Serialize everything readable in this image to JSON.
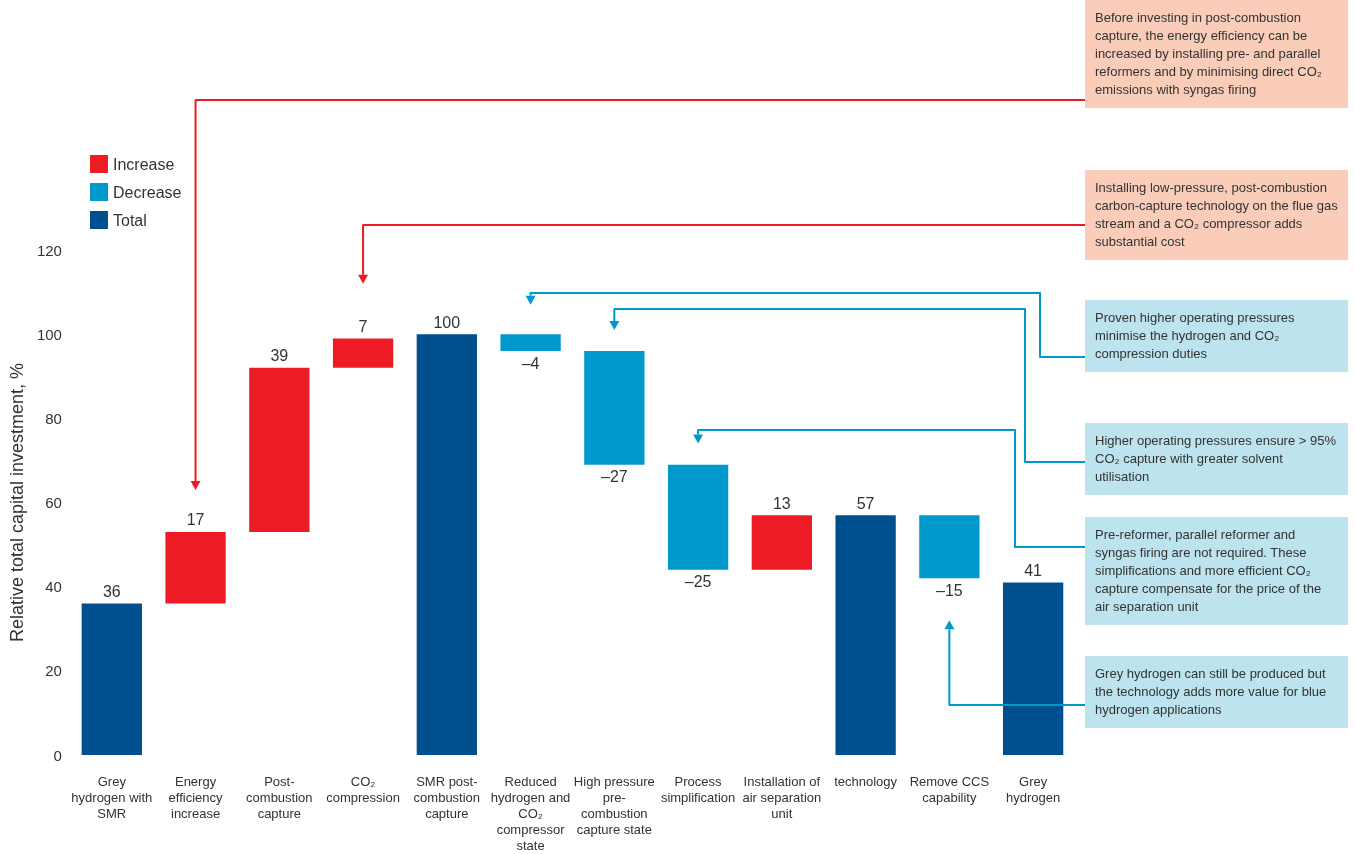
{
  "chart_data": {
    "type": "bar",
    "ylabel": "Relative total capital investment, %",
    "categories": [
      "Grey hydrogen with SMR",
      "Energy efficiency increase",
      "Post-combustion capture",
      "CO₂ compression",
      "SMR post-combustion capture",
      "Reduced hydrogen and CO₂ compressor state",
      "High pressure pre-combustion capture state",
      "Process simplification",
      "Installation of air separation unit",
      "technology",
      "Remove CCS capability",
      "Grey hydrogen"
    ],
    "series": [
      {
        "name": "Increase",
        "color": "#ed1c24",
        "base": [
          null,
          36,
          53,
          92,
          null,
          null,
          null,
          null,
          44,
          null,
          null,
          null
        ],
        "values": [
          null,
          17,
          39,
          7,
          null,
          null,
          null,
          null,
          13,
          null,
          null,
          null
        ],
        "value_labels": [
          null,
          "17",
          "39",
          "7",
          null,
          null,
          null,
          null,
          "13",
          null,
          null,
          null
        ]
      },
      {
        "name": "Decrease",
        "color": "#0099cc",
        "base": [
          null,
          null,
          null,
          null,
          null,
          100,
          96,
          69,
          null,
          null,
          57,
          null
        ],
        "values": [
          null,
          null,
          null,
          null,
          null,
          -4,
          -27,
          -25,
          null,
          null,
          -15,
          null
        ],
        "value_labels": [
          null,
          null,
          null,
          null,
          null,
          "–4",
          "–27",
          "–25",
          null,
          null,
          "–15",
          null
        ]
      },
      {
        "name": "Total",
        "color": "#00508f",
        "values": [
          36,
          null,
          null,
          null,
          100,
          null,
          null,
          null,
          null,
          57,
          null,
          41
        ],
        "value_labels": [
          "36",
          null,
          null,
          null,
          "100",
          null,
          null,
          null,
          null,
          "57",
          null,
          "41"
        ]
      }
    ],
    "ylim": [
      0,
      120
    ],
    "yticks": [
      0,
      20,
      40,
      60,
      80,
      100,
      120
    ],
    "grid": false,
    "legend": "top left",
    "annotations": [
      "Before investing in post-combustion capture, the energy efficiency can be increased by installing pre- and parallel reformers and by minimising direct CO₂ emissions with syngas firing",
      "Installing low-pressure, post-combustion carbon-capture technology on the flue gas stream and a CO₂ compressor adds substantial cost",
      "Proven higher operating pressures minimise the hydrogen and CO₂ compression duties",
      "Higher operating pressures ensure > 95% CO₂ capture with greater solvent utilisation",
      "Pre-reformer, parallel reformer and syngas firing are not required. These simplifications and more efficient CO₂ capture compensate for the price of the air separation unit",
      "Grey hydrogen can still be produced but the technology adds more value for blue hydrogen applications"
    ]
  }
}
